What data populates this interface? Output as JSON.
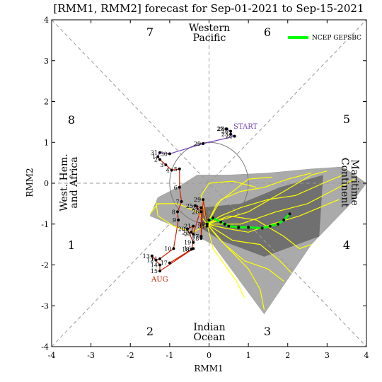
{
  "chart_data": {
    "type": "scatter",
    "title": "[RMM1, RMM2] forecast for Sep-01-2021 to Sep-15-2021",
    "xlabel": "RMM1",
    "ylabel": "RMM2",
    "xlim": [
      -4,
      4
    ],
    "ylim": [
      -4,
      4
    ],
    "xticks": [
      "-4",
      "-3",
      "-2",
      "-1",
      "0",
      "1",
      "2",
      "3",
      "4"
    ],
    "yticks": [
      "-4",
      "-3",
      "-2",
      "-1",
      "0",
      "1",
      "2",
      "3",
      "4"
    ],
    "phases": [
      "1",
      "2",
      "3",
      "4",
      "5",
      "6",
      "7",
      "8"
    ],
    "regions": {
      "western_pacific": [
        "Western",
        "Pacific"
      ],
      "indian_ocean": [
        "Indian",
        "Ocean"
      ],
      "maritime_continent": [
        "Maritime",
        "Continent"
      ],
      "west_hem_africa": [
        "West. Hem.",
        "and Africa"
      ]
    },
    "legend": {
      "label": "NCEP GEPSBC",
      "color": "#00ff00",
      "position": "top-right"
    },
    "month_labels": {
      "start": "START",
      "aug": "AUG"
    },
    "colors": {
      "aug": "#cc2200",
      "jul": "#7744bb",
      "ensemble": "#ffff00",
      "mean": "#00ff00",
      "outer_spread": "#aaaaaa",
      "inner_spread": "#666666"
    },
    "observed_jul": [
      {
        "day": "28",
        "x": 0.45,
        "y": 1.33
      },
      {
        "day": "27",
        "x": 0.43,
        "y": 1.33
      },
      {
        "day": "26",
        "x": 0.55,
        "y": 1.27
      },
      {
        "day": "25",
        "x": 0.55,
        "y": 1.2
      },
      {
        "day": "24",
        "x": 0.65,
        "y": 1.15
      },
      {
        "day": "29",
        "x": -0.15,
        "y": 0.97
      },
      {
        "day": "30",
        "x": -1.0,
        "y": 0.72
      },
      {
        "day": "31",
        "x": -1.25,
        "y": 0.75
      }
    ],
    "observed_aug": [
      {
        "day": "1",
        "x": -1.3,
        "y": 0.65
      },
      {
        "day": "2",
        "x": -1.25,
        "y": 0.58
      },
      {
        "day": "3",
        "x": -1.1,
        "y": 0.45
      },
      {
        "day": "4",
        "x": -0.95,
        "y": 0.32
      },
      {
        "day": "5",
        "x": -0.75,
        "y": 0.35
      },
      {
        "day": "6",
        "x": -0.75,
        "y": -0.1
      },
      {
        "day": "7",
        "x": -0.7,
        "y": -0.45
      },
      {
        "day": "8",
        "x": -0.8,
        "y": -0.7
      },
      {
        "day": "9",
        "x": -0.78,
        "y": -0.9
      },
      {
        "day": "10",
        "x": -0.9,
        "y": -1.6
      },
      {
        "day": "11",
        "x": -1.25,
        "y": -1.85
      },
      {
        "day": "12",
        "x": -1.35,
        "y": -1.88
      },
      {
        "day": "13",
        "x": -1.45,
        "y": -1.78
      },
      {
        "day": "14",
        "x": -1.25,
        "y": -2.0
      },
      {
        "day": "15",
        "x": -1.25,
        "y": -2.15
      },
      {
        "day": "16",
        "x": -0.4,
        "y": -1.6
      },
      {
        "day": "17",
        "x": -1.0,
        "y": -1.95
      },
      {
        "day": "18",
        "x": -0.45,
        "y": -1.62
      },
      {
        "day": "19",
        "x": -0.4,
        "y": -1.45
      },
      {
        "day": "20",
        "x": -0.55,
        "y": -1.12
      },
      {
        "day": "21",
        "x": -0.4,
        "y": -1.05
      },
      {
        "day": "22",
        "x": -0.45,
        "y": -1.2
      },
      {
        "day": "23",
        "x": -0.4,
        "y": -1.25
      },
      {
        "day": "24",
        "x": -0.2,
        "y": -0.6
      },
      {
        "day": "25",
        "x": -0.35,
        "y": -0.55
      },
      {
        "day": "26",
        "x": -0.2,
        "y": -0.7
      },
      {
        "day": "27",
        "x": -0.2,
        "y": -1.3
      },
      {
        "day": "28",
        "x": -0.2,
        "y": -1.35
      },
      {
        "day": "29",
        "x": -0.15,
        "y": -0.4
      },
      {
        "day": "30",
        "x": -0.05,
        "y": -1.0
      },
      {
        "day": "31",
        "x": -0.05,
        "y": -1.05
      }
    ],
    "ensemble_mean": [
      {
        "x": -0.05,
        "y": -1.0
      },
      {
        "x": 0.0,
        "y": -0.9
      },
      {
        "x": 0.1,
        "y": -0.85
      },
      {
        "x": 0.3,
        "y": -0.95
      },
      {
        "x": 0.4,
        "y": -1.0
      },
      {
        "x": 0.5,
        "y": -1.05
      },
      {
        "x": 0.75,
        "y": -1.08
      },
      {
        "x": 1.0,
        "y": -1.08
      },
      {
        "x": 1.35,
        "y": -1.1
      },
      {
        "x": 1.55,
        "y": -1.05
      },
      {
        "x": 1.75,
        "y": -1.0
      },
      {
        "x": 1.9,
        "y": -0.9
      },
      {
        "x": 2.05,
        "y": -0.75
      }
    ],
    "spread_outer": [
      {
        "x": -1.5,
        "y": -0.8
      },
      {
        "x": -1.3,
        "y": -0.35
      },
      {
        "x": -0.8,
        "y": -0.1
      },
      {
        "x": -0.3,
        "y": 0.2
      },
      {
        "x": 0.5,
        "y": 0.2
      },
      {
        "x": 1.5,
        "y": 0.25
      },
      {
        "x": 2.6,
        "y": 0.35
      },
      {
        "x": 3.4,
        "y": 0.4
      },
      {
        "x": 4.0,
        "y": 0.0
      },
      {
        "x": 3.6,
        "y": -0.5
      },
      {
        "x": 2.6,
        "y": -1.5
      },
      {
        "x": 1.4,
        "y": -3.2
      },
      {
        "x": 0.1,
        "y": -1.5
      },
      {
        "x": -0.3,
        "y": -1.3
      },
      {
        "x": -1.0,
        "y": -1.0
      },
      {
        "x": -1.5,
        "y": -0.8
      }
    ],
    "spread_inner": [
      {
        "x": -0.2,
        "y": -0.6
      },
      {
        "x": 0.8,
        "y": -0.5
      },
      {
        "x": 1.8,
        "y": -0.1
      },
      {
        "x": 2.9,
        "y": 0.2
      },
      {
        "x": 2.8,
        "y": -1.3
      },
      {
        "x": 1.4,
        "y": -1.8
      },
      {
        "x": 0.3,
        "y": -1.4
      },
      {
        "x": -0.2,
        "y": -1.1
      },
      {
        "x": -0.2,
        "y": -0.6
      }
    ],
    "ensemble_members": [
      [
        {
          "x": -0.05,
          "y": -1.0
        },
        {
          "x": 0.3,
          "y": -0.8
        },
        {
          "x": 0.8,
          "y": -0.6
        },
        {
          "x": 1.5,
          "y": -0.4
        },
        {
          "x": 2.2,
          "y": -0.3
        },
        {
          "x": 2.9,
          "y": 0.0
        },
        {
          "x": 3.4,
          "y": 0.2
        }
      ],
      [
        {
          "x": -0.05,
          "y": -1.0
        },
        {
          "x": 0.4,
          "y": -1.1
        },
        {
          "x": 1.0,
          "y": -1.2
        },
        {
          "x": 1.6,
          "y": -1.0
        },
        {
          "x": 2.3,
          "y": -0.8
        },
        {
          "x": 2.8,
          "y": -0.6
        },
        {
          "x": 3.3,
          "y": -0.4
        }
      ],
      [
        {
          "x": -0.05,
          "y": -1.0
        },
        {
          "x": 0.2,
          "y": -1.3
        },
        {
          "x": 0.6,
          "y": -1.7
        },
        {
          "x": 1.0,
          "y": -2.1
        },
        {
          "x": 1.3,
          "y": -2.6
        },
        {
          "x": 1.4,
          "y": -3.1
        }
      ],
      [
        {
          "x": -0.05,
          "y": -1.0
        },
        {
          "x": -0.3,
          "y": -0.7
        },
        {
          "x": -0.8,
          "y": -0.5
        },
        {
          "x": -1.3,
          "y": -0.5
        },
        {
          "x": -1.5,
          "y": -0.75
        }
      ],
      [
        {
          "x": -0.05,
          "y": -1.0
        },
        {
          "x": 0.5,
          "y": -0.8
        },
        {
          "x": 1.2,
          "y": -0.9
        },
        {
          "x": 1.9,
          "y": -1.3
        },
        {
          "x": 2.3,
          "y": -1.6
        },
        {
          "x": 2.6,
          "y": -1.5
        }
      ],
      [
        {
          "x": -0.05,
          "y": -1.0
        },
        {
          "x": 0.3,
          "y": -0.4
        },
        {
          "x": 0.8,
          "y": -0.2
        },
        {
          "x": 1.4,
          "y": -0.1
        },
        {
          "x": 2.0,
          "y": 0.1
        },
        {
          "x": 2.6,
          "y": 0.25
        }
      ],
      [
        {
          "x": -0.05,
          "y": -1.0
        },
        {
          "x": 0.1,
          "y": -1.6
        },
        {
          "x": 0.4,
          "y": -2.0
        },
        {
          "x": 0.7,
          "y": -2.4
        },
        {
          "x": 0.9,
          "y": -2.8
        }
      ],
      [
        {
          "x": -0.05,
          "y": -1.0
        },
        {
          "x": -0.4,
          "y": -1.2
        },
        {
          "x": -0.9,
          "y": -1.05
        },
        {
          "x": -1.3,
          "y": -0.8
        },
        {
          "x": -1.35,
          "y": -0.45
        }
      ],
      [
        {
          "x": -0.05,
          "y": -1.0
        },
        {
          "x": 0.6,
          "y": -1.4
        },
        {
          "x": 1.3,
          "y": -1.5
        },
        {
          "x": 1.8,
          "y": -1.9
        },
        {
          "x": 2.1,
          "y": -2.2
        }
      ],
      [
        {
          "x": -0.05,
          "y": -1.0
        },
        {
          "x": 0.2,
          "y": -0.5
        },
        {
          "x": 0.6,
          "y": -0.2
        },
        {
          "x": 1.0,
          "y": 0.1
        },
        {
          "x": 1.6,
          "y": 0.15
        }
      ],
      [
        {
          "x": -0.05,
          "y": -1.0
        },
        {
          "x": 0.8,
          "y": -1.0
        },
        {
          "x": 1.7,
          "y": -0.7
        },
        {
          "x": 2.5,
          "y": -0.5
        },
        {
          "x": 3.1,
          "y": -0.2
        },
        {
          "x": 3.7,
          "y": 0.1
        }
      ],
      [
        {
          "x": -0.05,
          "y": -1.0
        },
        {
          "x": 0.4,
          "y": -1.5
        },
        {
          "x": 0.9,
          "y": -1.9
        },
        {
          "x": 1.5,
          "y": -2.1
        },
        {
          "x": 1.9,
          "y": -2.4
        }
      ],
      [
        {
          "x": -0.05,
          "y": -1.0
        },
        {
          "x": -0.2,
          "y": -0.3
        },
        {
          "x": 0.0,
          "y": 0.0
        },
        {
          "x": 0.6,
          "y": 0.05
        },
        {
          "x": 1.2,
          "y": -0.1
        }
      ],
      [
        {
          "x": -0.05,
          "y": -1.0
        },
        {
          "x": 1.0,
          "y": -0.7
        },
        {
          "x": 1.9,
          "y": -0.2
        },
        {
          "x": 2.6,
          "y": 0.2
        },
        {
          "x": 3.0,
          "y": 0.3
        }
      ]
    ]
  }
}
